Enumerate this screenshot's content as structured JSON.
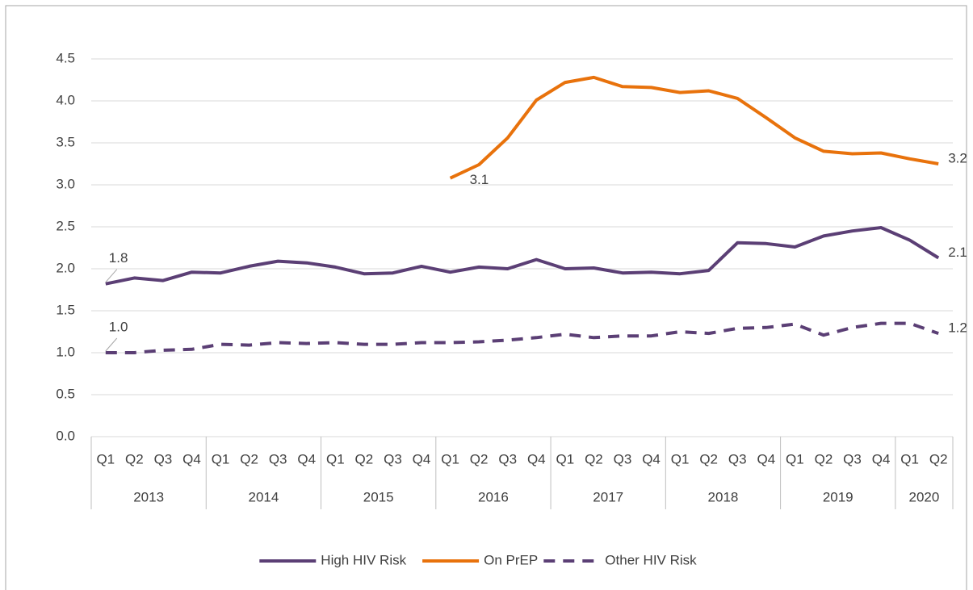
{
  "chart_data": {
    "type": "line",
    "category_groups": [
      {
        "name": "2013",
        "categories": [
          "Q1",
          "Q2",
          "Q3",
          "Q4"
        ]
      },
      {
        "name": "2014",
        "categories": [
          "Q1",
          "Q2",
          "Q3",
          "Q4"
        ]
      },
      {
        "name": "2015",
        "categories": [
          "Q1",
          "Q2",
          "Q3",
          "Q4"
        ]
      },
      {
        "name": "2016",
        "categories": [
          "Q1",
          "Q2",
          "Q3",
          "Q4"
        ]
      },
      {
        "name": "2017",
        "categories": [
          "Q1",
          "Q2",
          "Q3",
          "Q4"
        ]
      },
      {
        "name": "2018",
        "categories": [
          "Q1",
          "Q2",
          "Q3",
          "Q4"
        ]
      },
      {
        "name": "2019",
        "categories": [
          "Q1",
          "Q2",
          "Q3",
          "Q4"
        ]
      },
      {
        "name": "2020",
        "categories": [
          "Q1",
          "Q2"
        ]
      }
    ],
    "series": [
      {
        "name": "High HIV Risk",
        "color": "#5b3f75",
        "dash": false,
        "values": [
          1.82,
          1.89,
          1.86,
          1.96,
          1.95,
          2.03,
          2.09,
          2.07,
          2.02,
          1.94,
          1.95,
          2.03,
          1.96,
          2.02,
          2.0,
          2.11,
          2.0,
          2.01,
          1.95,
          1.96,
          1.94,
          1.98,
          2.31,
          2.3,
          2.26,
          2.39,
          2.45,
          2.49,
          2.34,
          2.13
        ],
        "value_labels": [
          "1.8",
          null,
          null,
          null,
          null,
          null,
          null,
          null,
          null,
          null,
          null,
          null,
          null,
          null,
          null,
          null,
          null,
          null,
          null,
          null,
          null,
          null,
          null,
          null,
          null,
          null,
          null,
          null,
          null,
          "2.1"
        ]
      },
      {
        "name": "On PrEP",
        "color": "#e8720c",
        "dash": false,
        "values": [
          null,
          null,
          null,
          null,
          null,
          null,
          null,
          null,
          null,
          null,
          null,
          null,
          3.08,
          3.24,
          3.56,
          4.01,
          4.22,
          4.28,
          4.17,
          4.16,
          4.1,
          4.12,
          4.03,
          3.8,
          3.56,
          3.4,
          3.37,
          3.38,
          3.31,
          3.25
        ],
        "value_labels": [
          null,
          null,
          null,
          null,
          null,
          null,
          null,
          null,
          null,
          null,
          null,
          null,
          "3.1",
          null,
          null,
          null,
          null,
          null,
          null,
          null,
          null,
          null,
          null,
          null,
          null,
          null,
          null,
          null,
          null,
          "3.2"
        ]
      },
      {
        "name": "Other HIV Risk",
        "color": "#5b3f75",
        "dash": true,
        "values": [
          1.0,
          1.0,
          1.03,
          1.04,
          1.1,
          1.09,
          1.12,
          1.11,
          1.12,
          1.1,
          1.1,
          1.12,
          1.12,
          1.13,
          1.15,
          1.18,
          1.22,
          1.18,
          1.2,
          1.2,
          1.25,
          1.23,
          1.29,
          1.3,
          1.34,
          1.21,
          1.3,
          1.35,
          1.35,
          1.23
        ],
        "value_labels": [
          "1.0",
          null,
          null,
          null,
          null,
          null,
          null,
          null,
          null,
          null,
          null,
          null,
          null,
          null,
          null,
          null,
          null,
          null,
          null,
          null,
          null,
          null,
          null,
          null,
          null,
          null,
          null,
          null,
          null,
          "1.2"
        ]
      }
    ],
    "ylim": [
      0,
      4.5
    ],
    "yticks": [
      {
        "value": 0,
        "label": "0.0"
      },
      {
        "value": 0.5,
        "label": "0.5"
      },
      {
        "value": 1,
        "label": "1.0"
      },
      {
        "value": 1.5,
        "label": "1.5"
      },
      {
        "value": 2,
        "label": "2.0"
      },
      {
        "value": 2.5,
        "label": "2.5"
      },
      {
        "value": 3,
        "label": "3.0"
      },
      {
        "value": 3.5,
        "label": "3.5"
      },
      {
        "value": 4,
        "label": "4.0"
      },
      {
        "value": 4.5,
        "label": "4.5"
      }
    ],
    "grid": true,
    "legend": "bottom"
  }
}
